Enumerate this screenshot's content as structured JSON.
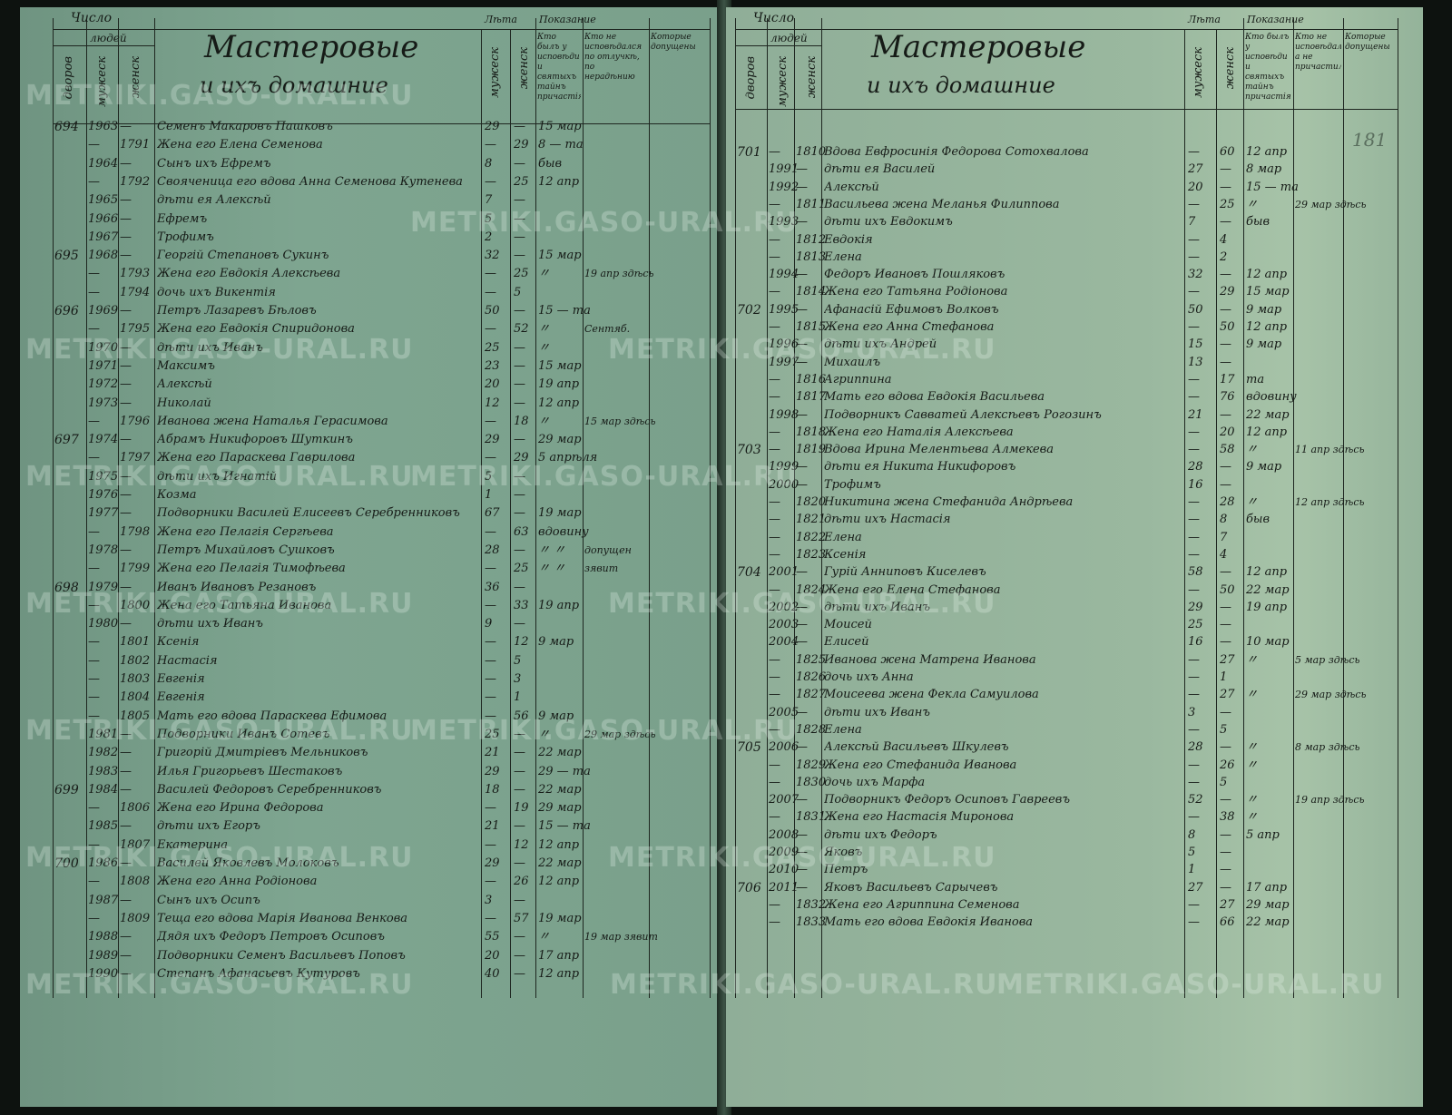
{
  "watermark": "METRIKI.GASO-URAL.RU",
  "colors": {
    "left_paper": "#7ea590",
    "right_paper": "#9ab89f",
    "ink": "#161b17"
  },
  "left_page": {
    "header": {
      "number_label": "Число",
      "people_label": "людей",
      "households_label": "дворов",
      "male_label": "мужеск",
      "female_label": "женск",
      "title": "Мастеровые",
      "subtitle": "и ихъ домашние",
      "age_label": "Лѣта",
      "age_male": "мужеск",
      "age_female": "женск",
      "testimony_label": "Показание",
      "testimony_col1": "Кто былъ у исповѣди и святыхъ тайнъ причастія",
      "testimony_col2": "Кто не исповѣдался по отлучкѣ, по нерадѣнию",
      "testimony_col3": "Которые допущены"
    },
    "rows": [
      [
        "694",
        "1963",
        "—",
        "Семенъ Макаровъ Пашковъ",
        "29",
        "—",
        "15 мар",
        ""
      ],
      [
        "",
        "—",
        "1791",
        "Жена его Елена Семенова",
        "—",
        "29",
        "8 — та",
        ""
      ],
      [
        "",
        "1964",
        "—",
        "Сынъ ихъ Ефремъ",
        "8",
        "—",
        "быв",
        ""
      ],
      [
        "",
        "—",
        "1792",
        "Свояченица его вдова Анна Семенова Кутенева",
        "—",
        "25",
        "12 апр",
        ""
      ],
      [
        "",
        "1965",
        "—",
        "дѣти ея Алексѣй",
        "7",
        "—",
        "",
        ""
      ],
      [
        "",
        "1966",
        "—",
        "Ефремъ",
        "5",
        "—",
        "",
        ""
      ],
      [
        "",
        "1967",
        "—",
        "Трофимъ",
        "2",
        "—",
        "",
        ""
      ],
      [
        "695",
        "1968",
        "—",
        "Георгій Степановъ Сукинъ",
        "32",
        "—",
        "15 мар",
        ""
      ],
      [
        "",
        "—",
        "1793",
        "Жена его Евдокія Алексѣева",
        "—",
        "25",
        "〃",
        "19 апр здѣсь"
      ],
      [
        "",
        "—",
        "1794",
        "дочь ихъ Викентія",
        "—",
        "5",
        "",
        ""
      ],
      [
        "696",
        "1969",
        "—",
        "Петръ Лазаревъ Бѣловъ",
        "50",
        "—",
        "15 — та",
        ""
      ],
      [
        "",
        "—",
        "1795",
        "Жена его Евдокія Спиридонова",
        "—",
        "52",
        "〃",
        "Сентяб."
      ],
      [
        "",
        "1970",
        "—",
        "дѣти ихъ Иванъ",
        "25",
        "—",
        "〃",
        ""
      ],
      [
        "",
        "1971",
        "—",
        "Максимъ",
        "23",
        "—",
        "15 мар",
        ""
      ],
      [
        "",
        "1972",
        "—",
        "Алексѣй",
        "20",
        "—",
        "19 апр",
        ""
      ],
      [
        "",
        "1973",
        "—",
        "Николай",
        "12",
        "—",
        "12 апр",
        ""
      ],
      [
        "",
        "—",
        "1796",
        "Иванова жена Наталья Герасимова",
        "—",
        "18",
        "〃",
        "15 мар здѣсь"
      ],
      [
        "697",
        "1974",
        "—",
        "Абрамъ Никифоровъ Шуткинъ",
        "29",
        "—",
        "29 мар",
        ""
      ],
      [
        "",
        "—",
        "1797",
        "Жена его Параскева Гаврилова",
        "—",
        "29",
        "5 апрѣля",
        ""
      ],
      [
        "",
        "1975",
        "—",
        "дѣти ихъ Игнатій",
        "5",
        "—",
        "",
        ""
      ],
      [
        "",
        "1976",
        "—",
        "Козма",
        "1",
        "—",
        "",
        ""
      ],
      [
        "",
        "1977",
        "—",
        "Подворники Василей Елисеевъ Серебренниковъ",
        "67",
        "—",
        "19 мар",
        ""
      ],
      [
        "",
        "—",
        "1798",
        "Жена его Пелагія Сергѣева",
        "—",
        "63",
        "вдовину",
        ""
      ],
      [
        "",
        "1978",
        "—",
        "Петръ Михайловъ Сушковъ",
        "28",
        "—",
        "〃 〃",
        "допущен"
      ],
      [
        "",
        "—",
        "1799",
        "Жена его Пелагія Тимофѣева",
        "—",
        "25",
        "〃 〃",
        "зявит"
      ],
      [
        "698",
        "1979",
        "—",
        "Иванъ Ивановъ Резановъ",
        "36",
        "—",
        "",
        ""
      ],
      [
        "",
        "—",
        "1800",
        "Жена его Татьяна Иванова",
        "—",
        "33",
        "19 апр",
        ""
      ],
      [
        "",
        "1980",
        "—",
        "дѣти ихъ Иванъ",
        "9",
        "—",
        "",
        ""
      ],
      [
        "",
        "—",
        "1801",
        "Ксенія",
        "—",
        "12",
        "9 мар",
        ""
      ],
      [
        "",
        "—",
        "1802",
        "Настасія",
        "—",
        "5",
        "",
        ""
      ],
      [
        "",
        "—",
        "1803",
        "Евгенія",
        "—",
        "3",
        "",
        ""
      ],
      [
        "",
        "—",
        "1804",
        "Евгенія",
        "—",
        "1",
        "",
        ""
      ],
      [
        "",
        "—",
        "1805",
        "Мать его вдова Параскева Ефимова",
        "—",
        "56",
        "9 мар",
        ""
      ],
      [
        "",
        "1981",
        "—",
        "Подворники Иванъ Сотевъ",
        "25",
        "—",
        "〃",
        "29 мар здѣсь"
      ],
      [
        "",
        "1982",
        "—",
        "Григорій Дмитріевъ Мельниковъ",
        "21",
        "—",
        "22 мар",
        ""
      ],
      [
        "",
        "1983",
        "—",
        "Илья Григорьевъ Шестаковъ",
        "29",
        "—",
        "29 — та",
        ""
      ],
      [
        "699",
        "1984",
        "—",
        "Василей Федоровъ Серебренниковъ",
        "18",
        "—",
        "22 мар",
        ""
      ],
      [
        "",
        "—",
        "1806",
        "Жена его Ирина Федорова",
        "—",
        "19",
        "29 мар",
        ""
      ],
      [
        "",
        "1985",
        "—",
        "дѣти ихъ Егоръ",
        "21",
        "—",
        "15 — та",
        ""
      ],
      [
        "",
        "—",
        "1807",
        "Екатерина",
        "—",
        "12",
        "12 апр",
        ""
      ],
      [
        "700",
        "1986",
        "—",
        "Василей Яковлевъ Молоковъ",
        "29",
        "—",
        "22 мар",
        ""
      ],
      [
        "",
        "—",
        "1808",
        "Жена его Анна Родіонова",
        "—",
        "26",
        "12 апр",
        ""
      ],
      [
        "",
        "1987",
        "—",
        "Сынъ ихъ Осипъ",
        "3",
        "—",
        "",
        ""
      ],
      [
        "",
        "—",
        "1809",
        "Теща его вдова Марія Иванова Венкова",
        "—",
        "57",
        "19 мар",
        ""
      ],
      [
        "",
        "1988",
        "—",
        "Дядя ихъ Федоръ Петровъ Осиповъ",
        "55",
        "—",
        "〃",
        "19 мар зявит"
      ],
      [
        "",
        "1989",
        "—",
        "Подворники Семенъ Васильевъ Поповъ",
        "20",
        "—",
        "17 апр",
        ""
      ],
      [
        "",
        "1990",
        "—",
        "Степанъ Афанасьевъ Кутуровъ",
        "40",
        "—",
        "12 апр",
        ""
      ]
    ]
  },
  "right_page": {
    "header": {
      "number_label": "Число",
      "people_label": "людей",
      "households_label": "дворов",
      "male_label": "мужеск",
      "female_label": "женск",
      "title": "Мастеровые",
      "subtitle": "и ихъ домашние",
      "age_label": "Лѣта",
      "age_male": "мужеск",
      "age_female": "женск",
      "testimony_label": "Показание",
      "testimony_col1": "Кто былъ у исповѣди и святыхъ тайнъ причастія",
      "testimony_col2": "Кто не исповѣдался а не причастился",
      "testimony_col3": "Которые допущены",
      "margin_number": "181"
    },
    "rows": [
      [
        "701",
        "—",
        "1810",
        "Вдова Евфросинія Федорова Сотохвалова",
        "—",
        "60",
        "12 апр",
        ""
      ],
      [
        "",
        "1991",
        "—",
        "дѣти ея Василей",
        "27",
        "—",
        "8 мар",
        ""
      ],
      [
        "",
        "1992",
        "—",
        "Алексѣй",
        "20",
        "—",
        "15 — та",
        ""
      ],
      [
        "",
        "—",
        "1811",
        "Васильева жена Меланья Филиппова",
        "—",
        "25",
        "〃",
        "29 мар здѣсь"
      ],
      [
        "",
        "1993",
        "—",
        "дѣти ихъ Евдокимъ",
        "7",
        "—",
        "быв",
        ""
      ],
      [
        "",
        "—",
        "1812",
        "Евдокія",
        "—",
        "4",
        "",
        ""
      ],
      [
        "",
        "—",
        "1813",
        "Елена",
        "—",
        "2",
        "",
        ""
      ],
      [
        "",
        "1994",
        "—",
        "Федоръ Ивановъ Пошляковъ",
        "32",
        "—",
        "12 апр",
        ""
      ],
      [
        "",
        "—",
        "1814",
        "Жена его Татьяна Родіонова",
        "—",
        "29",
        "15 мар",
        ""
      ],
      [
        "702",
        "1995",
        "—",
        "Афанасій Ефимовъ Волковъ",
        "50",
        "—",
        "9 мар",
        ""
      ],
      [
        "",
        "—",
        "1815",
        "Жена его Анна Стефанова",
        "—",
        "50",
        "12 апр",
        ""
      ],
      [
        "",
        "1996",
        "—",
        "дѣти ихъ Андрей",
        "15",
        "—",
        "9 мар",
        ""
      ],
      [
        "",
        "1997",
        "—",
        "Михаилъ",
        "13",
        "—",
        "",
        ""
      ],
      [
        "",
        "—",
        "1816",
        "Агриппина",
        "—",
        "17",
        "та",
        ""
      ],
      [
        "",
        "—",
        "1817",
        "Мать его вдова Евдокія Васильева",
        "—",
        "76",
        "вдовину",
        ""
      ],
      [
        "",
        "1998",
        "—",
        "Подворникъ Савватей Алексѣевъ Рогозинъ",
        "21",
        "—",
        "22 мар",
        ""
      ],
      [
        "",
        "—",
        "1818",
        "Жена его Наталія Алексѣева",
        "—",
        "20",
        "12 апр",
        ""
      ],
      [
        "703",
        "—",
        "1819",
        "Вдова Ирина Мелентьева Алмекева",
        "—",
        "58",
        "〃",
        "11 апр здѣсь"
      ],
      [
        "",
        "1999",
        "—",
        "дѣти ея Никита Никифоровъ",
        "28",
        "—",
        "9 мар",
        ""
      ],
      [
        "",
        "2000",
        "—",
        "Трофимъ",
        "16",
        "—",
        "",
        ""
      ],
      [
        "",
        "—",
        "1820",
        "Никитина жена Стефанида Андрѣева",
        "—",
        "28",
        "〃",
        "12 апр здѣсь"
      ],
      [
        "",
        "—",
        "1821",
        "дѣти ихъ Настасія",
        "—",
        "8",
        "быв",
        ""
      ],
      [
        "",
        "—",
        "1822",
        "Елена",
        "—",
        "7",
        "",
        ""
      ],
      [
        "",
        "—",
        "1823",
        "Ксенія",
        "—",
        "4",
        "",
        ""
      ],
      [
        "704",
        "2001",
        "—",
        "Гурій Анниповъ Киселевъ",
        "58",
        "—",
        "12 апр",
        ""
      ],
      [
        "",
        "—",
        "1824",
        "Жена его Елена Стефанова",
        "—",
        "50",
        "22 мар",
        ""
      ],
      [
        "",
        "2002",
        "—",
        "дѣти ихъ Иванъ",
        "29",
        "—",
        "19 апр",
        ""
      ],
      [
        "",
        "2003",
        "—",
        "Моисей",
        "25",
        "—",
        "",
        ""
      ],
      [
        "",
        "2004",
        "—",
        "Елисей",
        "16",
        "—",
        "10 мар",
        ""
      ],
      [
        "",
        "—",
        "1825",
        "Иванова жена Матрена Иванова",
        "—",
        "27",
        "〃",
        "5 мар здѣсь"
      ],
      [
        "",
        "—",
        "1826",
        "дочь ихъ Анна",
        "—",
        "1",
        "",
        ""
      ],
      [
        "",
        "—",
        "1827",
        "Моисеева жена Фекла Самуилова",
        "—",
        "27",
        "〃",
        "29 мар здѣсь"
      ],
      [
        "",
        "2005",
        "—",
        "дѣти ихъ Иванъ",
        "3",
        "—",
        "",
        ""
      ],
      [
        "",
        "—",
        "1828",
        "Елена",
        "—",
        "5",
        "",
        ""
      ],
      [
        "705",
        "2006",
        "—",
        "Алексѣй Васильевъ Шкулевъ",
        "28",
        "—",
        "〃",
        "8 мар здѣсь"
      ],
      [
        "",
        "—",
        "1829",
        "Жена его Стефанида Иванова",
        "—",
        "26",
        "〃",
        ""
      ],
      [
        "",
        "—",
        "1830",
        "дочь ихъ Марфа",
        "—",
        "5",
        "",
        ""
      ],
      [
        "",
        "2007",
        "—",
        "Подворникъ Федоръ Осиповъ Гавреевъ",
        "52",
        "—",
        "〃",
        "19 апр здѣсь"
      ],
      [
        "",
        "—",
        "1831",
        "Жена его Настасія Миронова",
        "—",
        "38",
        "〃",
        ""
      ],
      [
        "",
        "2008",
        "—",
        "дѣти ихъ Федоръ",
        "8",
        "—",
        "5 апр",
        ""
      ],
      [
        "",
        "2009",
        "—",
        "Яковъ",
        "5",
        "—",
        "",
        ""
      ],
      [
        "",
        "2010",
        "—",
        "Петръ",
        "1",
        "—",
        "",
        ""
      ],
      [
        "706",
        "2011",
        "—",
        "Яковъ Васильевъ Сарычевъ",
        "27",
        "—",
        "17 апр",
        ""
      ],
      [
        "",
        "—",
        "1832",
        "Жена его Агриппина Семенова",
        "—",
        "27",
        "29 мар",
        ""
      ],
      [
        "",
        "—",
        "1833",
        "Мать его вдова Евдокія Иванова",
        "—",
        "66",
        "22 мар",
        ""
      ]
    ]
  }
}
